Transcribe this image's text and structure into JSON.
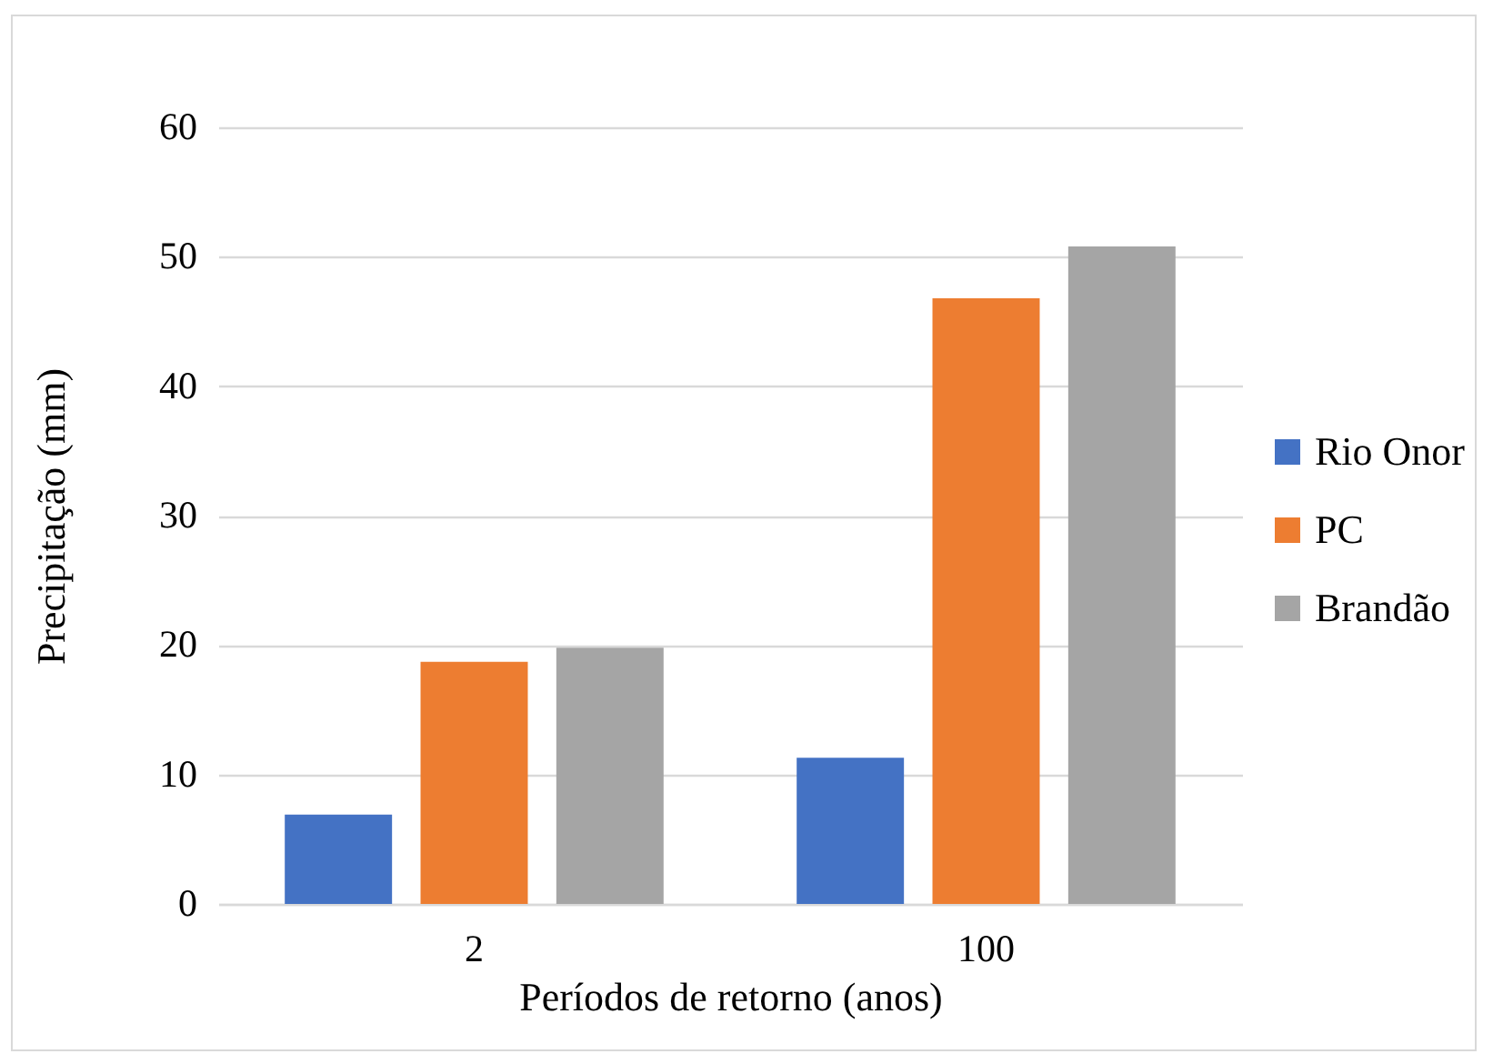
{
  "chart_data": {
    "type": "bar",
    "xlabel": "Períodos de retorno (anos)",
    "ylabel": "Precipitação (mm)",
    "categories": [
      "2",
      "100"
    ],
    "series": [
      {
        "name": "Rio Onor",
        "color": "#4472c4",
        "values": [
          6.9,
          11.3
        ]
      },
      {
        "name": "PC",
        "color": "#ed7d31",
        "values": [
          18.7,
          46.8
        ]
      },
      {
        "name": "Brandão",
        "color": "#a5a5a5",
        "values": [
          19.8,
          50.8
        ]
      }
    ],
    "ylim": [
      0,
      60
    ],
    "yticks": [
      0,
      10,
      20,
      30,
      40,
      50,
      60
    ],
    "grid": "y",
    "legend": "right"
  }
}
